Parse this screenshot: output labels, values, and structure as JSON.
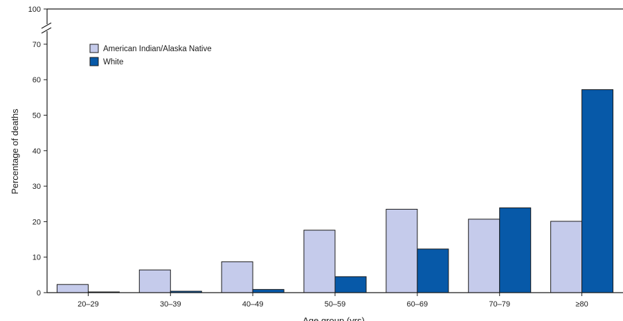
{
  "chart_data": {
    "type": "bar",
    "categories": [
      "20–29",
      "30–39",
      "40–49",
      "50–59",
      "60–69",
      "70–79",
      "≥80"
    ],
    "series": [
      {
        "name": "American Indian/Alaska Native",
        "color": "#c5cbeb",
        "values": [
          2.3,
          6.4,
          8.7,
          17.6,
          23.5,
          20.7,
          20.1
        ]
      },
      {
        "name": "White",
        "color": "#0759a8",
        "values": [
          0.2,
          0.4,
          0.9,
          4.5,
          12.3,
          23.9,
          57.2
        ]
      }
    ],
    "xlabel": "Age group (yrs)",
    "ylabel": "Percentage of deaths",
    "ylim": [
      0,
      100
    ],
    "y_ticks": [
      0,
      10,
      20,
      30,
      40,
      50,
      60,
      70
    ],
    "y_top_tick": 100,
    "axis_break": true,
    "grid": false,
    "legend_position": "top-left"
  }
}
